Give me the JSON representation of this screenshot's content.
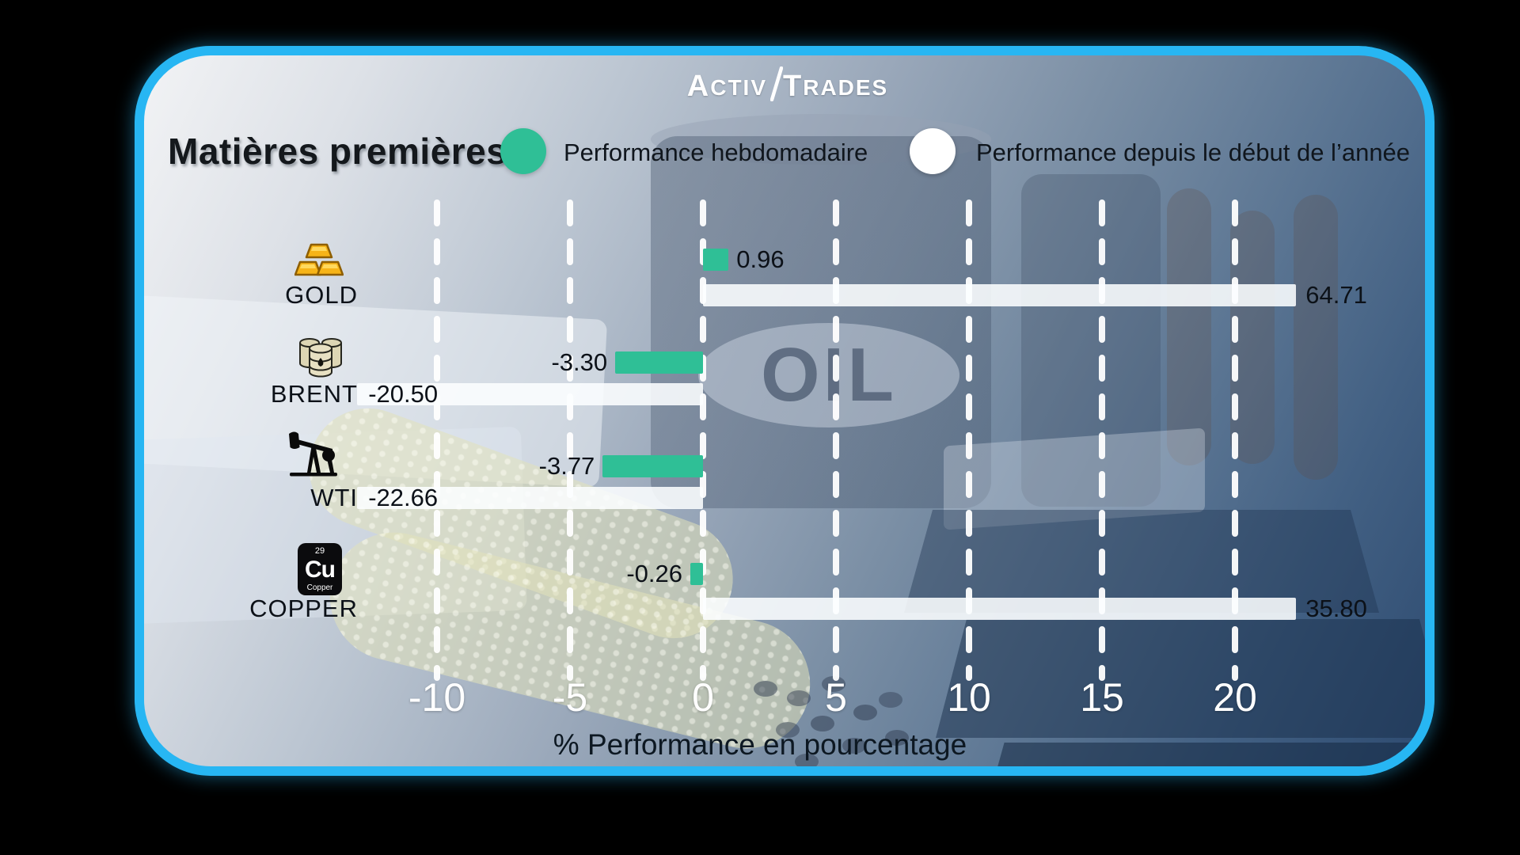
{
  "logo": {
    "p1": "A",
    "p2": "CTIV",
    "p3": "T",
    "p4": "RADES"
  },
  "title": "Matières premières",
  "legend": [
    {
      "label": "Performance hebdomadaire",
      "color": "#2fbf96"
    },
    {
      "label": "Performance depuis le début de l’année",
      "color": "#ffffff"
    }
  ],
  "background_text": "OIL",
  "chart_data": {
    "type": "bar",
    "orientation": "horizontal",
    "categories": [
      "GOLD",
      "BRENT",
      "WTI",
      "COPPER"
    ],
    "series": [
      {
        "name": "Performance hebdomadaire",
        "color": "#2fbf96",
        "values": [
          0.96,
          -3.3,
          -3.77,
          -0.26
        ]
      },
      {
        "name": "Performance depuis le début de l’année",
        "color": "#ffffff",
        "values": [
          64.71,
          -20.5,
          -22.66,
          35.8
        ]
      }
    ],
    "xlabel": "% Performance en pourcentage",
    "ticks": [
      -10,
      -5,
      0,
      5,
      10,
      15,
      20
    ],
    "tick_labels": [
      "-10",
      "-5",
      "0",
      "5",
      "10",
      "15",
      "20"
    ],
    "xlim_visible": [
      -13,
      22.3
    ],
    "grid": "dashed-white-vertical",
    "legend_position": "top"
  },
  "rows": [
    {
      "label": "GOLD",
      "icon": "gold-bars-icon",
      "weekly_label": "0.96",
      "ytd_label": "64.71"
    },
    {
      "label": "BRENT",
      "icon": "oil-barrels-icon",
      "weekly_label": "-3.30",
      "ytd_label": "-20.50"
    },
    {
      "label": "WTI",
      "icon": "oil-pump-icon",
      "weekly_label": "-3.77",
      "ytd_label": "-22.66"
    },
    {
      "label": "COPPER",
      "icon": "copper-element-icon",
      "weekly_label": "-0.26",
      "ytd_label": "35.80"
    }
  ],
  "copper_tile": {
    "number": "29",
    "symbol": "Cu",
    "name": "Copper"
  },
  "colors": {
    "accent_green": "#2fbf96",
    "bar_white": "#fcfeff",
    "border_cyan": "#27b6f3",
    "tick_text": "#ffffff",
    "label_text": "#0c1118"
  }
}
